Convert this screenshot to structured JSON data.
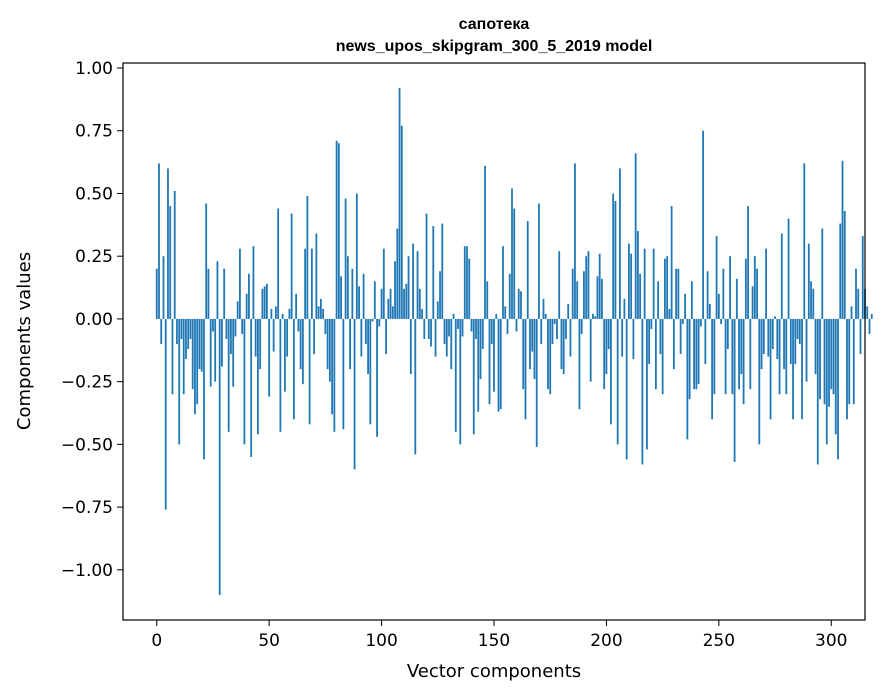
{
  "chart_data": {
    "type": "bar",
    "title": "сапотека",
    "subtitle": "news_upos_skipgram_300_5_2019 model",
    "xlabel": "Vector components",
    "ylabel": "Components values",
    "xlim": [
      -15,
      315
    ],
    "ylim": [
      -1.2,
      1.02
    ],
    "xticks": [
      0,
      50,
      100,
      150,
      200,
      250,
      300
    ],
    "yticks": [
      -1.0,
      -0.75,
      -0.5,
      -0.25,
      0.0,
      0.25,
      0.5,
      0.75,
      1.0
    ],
    "ytick_labels": [
      "−1.00",
      "−0.75",
      "−0.50",
      "−0.25",
      "0.00",
      "0.25",
      "0.50",
      "0.75",
      "1.00"
    ],
    "xtick_labels": [
      "0",
      "50",
      "100",
      "150",
      "200",
      "250",
      "300"
    ],
    "bar_color": "#1f77b4",
    "grid": false,
    "values": [
      0.2,
      0.62,
      -0.1,
      0.25,
      -0.76,
      0.6,
      0.45,
      -0.3,
      0.51,
      -0.1,
      -0.5,
      -0.08,
      -0.3,
      -0.16,
      -0.12,
      -0.08,
      -0.28,
      -0.38,
      -0.34,
      -0.2,
      -0.21,
      -0.56,
      0.46,
      0.2,
      -0.27,
      -0.05,
      -0.25,
      0.23,
      -1.1,
      -0.19,
      0.2,
      -0.08,
      -0.45,
      -0.14,
      -0.27,
      -0.07,
      0.07,
      0.28,
      -0.06,
      -0.5,
      0.1,
      0.18,
      -0.55,
      0.29,
      -0.15,
      -0.46,
      -0.2,
      0.12,
      0.13,
      0.14,
      -0.31,
      0.04,
      -0.13,
      0.05,
      0.44,
      -0.45,
      0.02,
      -0.29,
      -0.15,
      0.04,
      0.42,
      -0.4,
      0.1,
      -0.05,
      -0.2,
      -0.26,
      0.28,
      0.49,
      -0.42,
      0.28,
      -0.14,
      0.34,
      0.05,
      0.08,
      0.04,
      -0.06,
      -0.2,
      -0.25,
      -0.38,
      -0.45,
      0.71,
      0.7,
      0.17,
      -0.44,
      0.48,
      0.25,
      -0.2,
      0.2,
      -0.6,
      0.5,
      0.13,
      -0.15,
      0.18,
      -0.1,
      -0.22,
      -0.42,
      -0.01,
      0.15,
      -0.47,
      -0.03,
      0.12,
      0.28,
      -0.14,
      0.08,
      0.12,
      0.05,
      0.23,
      0.36,
      0.92,
      0.77,
      0.12,
      0.14,
      0.25,
      -0.22,
      0.3,
      -0.54,
      0.27,
      0.12,
      0.04,
      -0.08,
      0.42,
      -0.08,
      -0.11,
      0.37,
      -0.15,
      0.07,
      0.19,
      0.38,
      -0.1,
      -0.15,
      -0.07,
      -0.2,
      0.02,
      -0.45,
      -0.04,
      -0.5,
      -0.07,
      0.29,
      0.29,
      0.24,
      -0.05,
      -0.46,
      -0.08,
      -0.37,
      -0.24,
      -0.12,
      0.61,
      0.15,
      -0.34,
      -0.1,
      -0.29,
      0.02,
      -0.37,
      -0.36,
      0.29,
      0.05,
      -0.06,
      0.18,
      0.52,
      0.44,
      -0.05,
      0.12,
      0.11,
      -0.28,
      -0.4,
      0.39,
      -0.2,
      -0.13,
      -0.24,
      -0.51,
      0.46,
      -0.1,
      0.08,
      0.02,
      -0.28,
      -0.3,
      -0.1,
      -0.02,
      -0.08,
      0.27,
      -0.2,
      -0.22,
      -0.08,
      0.06,
      -0.15,
      0.2,
      0.62,
      0.15,
      -0.36,
      -0.06,
      0.19,
      0.25,
      0.27,
      -0.25,
      0.02,
      0.01,
      0.17,
      0.26,
      0.16,
      -0.28,
      -0.22,
      -0.12,
      -0.42,
      0.5,
      0.47,
      -0.5,
      0.6,
      -0.15,
      0.08,
      -0.56,
      0.3,
      0.26,
      -0.16,
      0.66,
      0.35,
      0.18,
      -0.58,
      0.28,
      -0.52,
      -0.18,
      -0.04,
      0.28,
      -0.28,
      0.15,
      -0.14,
      -0.3,
      0.24,
      0.25,
      0.04,
      0.45,
      -0.2,
      0.2,
      0.2,
      -0.14,
      -0.02,
      0.1,
      -0.48,
      -0.32,
      0.15,
      -0.28,
      -0.28,
      -0.26,
      -0.03,
      0.75,
      -0.18,
      0.19,
      0.06,
      -0.4,
      -0.3,
      0.33,
      0.1,
      -0.02,
      0.2,
      -0.3,
      -0.12,
      0.25,
      -0.3,
      -0.57,
      0.16,
      -0.28,
      -0.22,
      -0.34,
      0.24,
      0.45,
      -0.28,
      0.13,
      0.25,
      0.2,
      -0.5,
      -0.2,
      -0.14,
      0.28,
      -0.15,
      -0.4,
      -0.12,
      0.01,
      -0.16,
      -0.3,
      0.34,
      -0.2,
      -0.3,
      0.4,
      -0.18,
      -0.4,
      -0.18,
      -0.08,
      -0.1,
      -0.4,
      0.62,
      -0.25,
      0.3,
      0.15,
      0.12,
      -0.22,
      -0.58,
      -0.32,
      0.36,
      -0.34,
      -0.5,
      -0.35,
      -0.28,
      -0.3,
      -0.46,
      -0.56,
      0.38,
      0.63,
      0.43,
      -0.4,
      -0.34,
      0.05,
      -0.34,
      0.2,
      0.12,
      -0.14,
      0.33,
      0.12,
      0.05,
      -0.06,
      0.02
    ]
  }
}
